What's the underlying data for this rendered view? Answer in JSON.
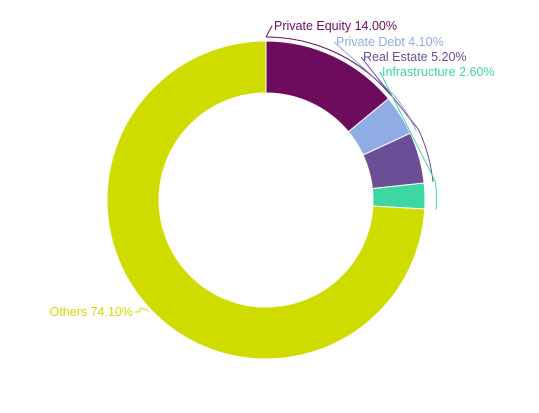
{
  "chart_data": {
    "type": "pie",
    "variant": "donut",
    "title": "",
    "slices": [
      {
        "name": "Private Equity",
        "value": 14.0,
        "label": "Private Equity 14.00%",
        "color": "#6d0c5d"
      },
      {
        "name": "Private Debt",
        "value": 4.1,
        "label": "Private Debt 4.10%",
        "color": "#8fade4"
      },
      {
        "name": "Real Estate",
        "value": 5.2,
        "label": "Real Estate 5.20%",
        "color": "#6b4e96"
      },
      {
        "name": "Infrastructure",
        "value": 2.6,
        "label": "Infrastructure 2.60%",
        "color": "#3dd6a5"
      },
      {
        "name": "Others",
        "value": 74.1,
        "label": "Others 74.10%",
        "color": "#cfdc00"
      }
    ],
    "legend": "none"
  }
}
